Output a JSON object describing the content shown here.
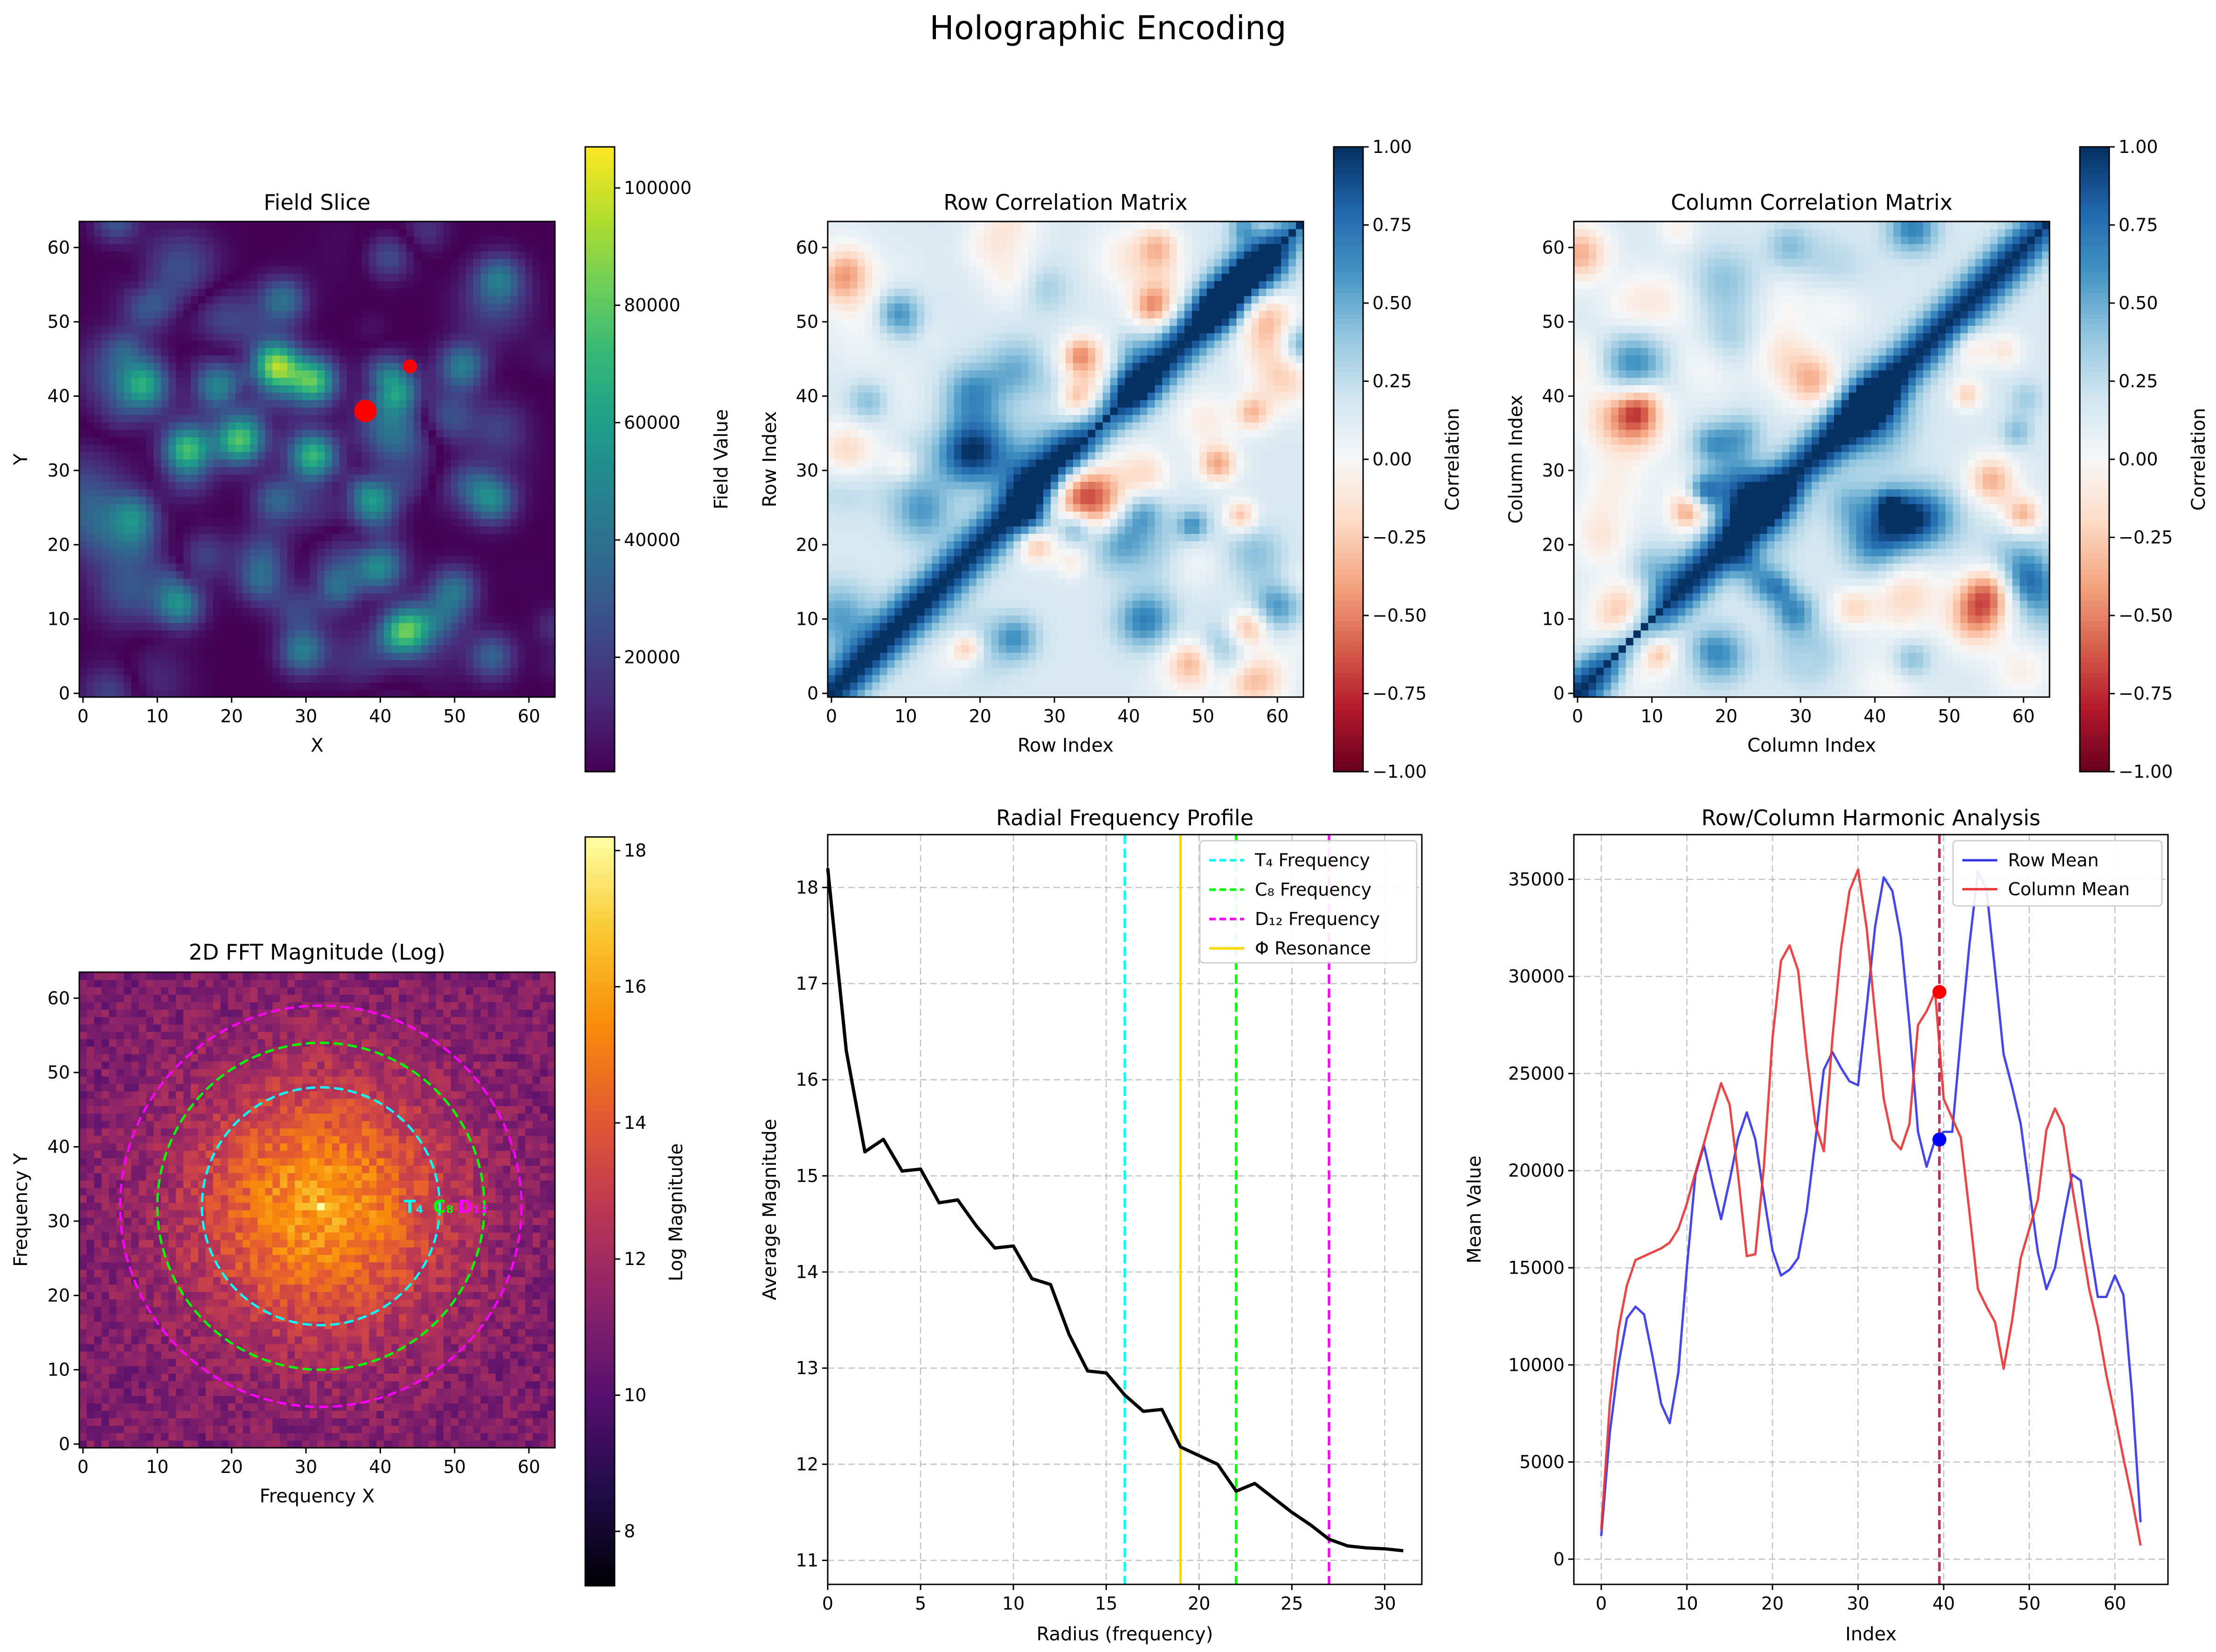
{
  "figure": {
    "suptitle": "Holographic Encoding"
  },
  "chart_data": [
    {
      "type": "heatmap",
      "title": "Field Slice",
      "xlabel": "X",
      "ylabel": "Y",
      "colormap": "viridis",
      "grid_size": 64,
      "xlim": [
        0,
        63
      ],
      "ylim": [
        0,
        63
      ],
      "xticks": [
        "0",
        "10",
        "20",
        "30",
        "40",
        "50",
        "60"
      ],
      "yticks": [
        "0",
        "10",
        "20",
        "30",
        "40",
        "50",
        "60"
      ],
      "colorbar": {
        "label": "Field Value",
        "range": [
          500,
          107000
        ],
        "ticks": [
          "20000",
          "40000",
          "60000",
          "80000",
          "100000"
        ],
        "tick_values": [
          20000,
          40000,
          60000,
          80000,
          100000
        ]
      },
      "markers": [
        {
          "x": 38,
          "y": 38,
          "color": "#ff0000"
        },
        {
          "x": 44,
          "y": 44,
          "color": "#ff0000"
        }
      ],
      "features": [
        {
          "x": 26,
          "y": 44,
          "value": 105000
        },
        {
          "x": 31,
          "y": 42,
          "value": 90000
        },
        {
          "x": 21,
          "y": 34,
          "value": 85000
        },
        {
          "x": 14,
          "y": 33,
          "value": 80000
        },
        {
          "x": 31,
          "y": 32,
          "value": 85000
        },
        {
          "x": 39,
          "y": 26,
          "value": 70000
        },
        {
          "x": 42,
          "y": 41,
          "value": 70000
        },
        {
          "x": 55,
          "y": 26,
          "value": 55000
        },
        {
          "x": 40,
          "y": 17,
          "value": 60000
        },
        {
          "x": 44,
          "y": 9,
          "value": 55000
        },
        {
          "x": 13,
          "y": 12,
          "value": 60000
        },
        {
          "x": 51,
          "y": 44,
          "value": 55000
        },
        {
          "x": 27,
          "y": 53,
          "value": 45000
        },
        {
          "x": 7,
          "y": 24,
          "value": 45000
        },
        {
          "x": 26,
          "y": 26,
          "value": 40000
        },
        {
          "x": 18,
          "y": 41,
          "value": 50000
        },
        {
          "x": 55,
          "y": 5,
          "value": 40000
        },
        {
          "x": 30,
          "y": 6,
          "value": 35000
        },
        {
          "x": 8,
          "y": 41,
          "value": 40000
        },
        {
          "x": 50,
          "y": 14,
          "value": 45000
        },
        {
          "x": 34,
          "y": 14,
          "value": 40000
        },
        {
          "x": 24,
          "y": 15,
          "value": 35000
        },
        {
          "x": 56,
          "y": 56,
          "value": 40000
        },
        {
          "x": 9,
          "y": 52,
          "value": 35000
        }
      ]
    },
    {
      "type": "heatmap",
      "title": "Row Correlation Matrix",
      "xlabel": "Row Index",
      "ylabel": "Row Index",
      "colormap": "RdBu",
      "grid_size": 64,
      "xlim": [
        0,
        63
      ],
      "ylim": [
        0,
        63
      ],
      "xticks": [
        "0",
        "10",
        "20",
        "30",
        "40",
        "50",
        "60"
      ],
      "yticks": [
        "0",
        "10",
        "20",
        "30",
        "40",
        "50",
        "60"
      ],
      "colorbar": {
        "label": "Correlation",
        "range": [
          -1,
          1
        ],
        "ticks": [
          "−1.00",
          "−0.75",
          "−0.50",
          "−0.25",
          "0.00",
          "0.25",
          "0.50",
          "0.75",
          "1.00"
        ],
        "tick_values": [
          -1,
          -0.75,
          -0.5,
          -0.25,
          0,
          0.25,
          0.5,
          0.75,
          1
        ]
      },
      "diagonal": 1.0
    },
    {
      "type": "heatmap",
      "title": "Column Correlation Matrix",
      "xlabel": "Column Index",
      "ylabel": "Column Index",
      "colormap": "RdBu",
      "grid_size": 64,
      "xlim": [
        0,
        63
      ],
      "ylim": [
        0,
        63
      ],
      "xticks": [
        "0",
        "10",
        "20",
        "30",
        "40",
        "50",
        "60"
      ],
      "yticks": [
        "0",
        "10",
        "20",
        "30",
        "40",
        "50",
        "60"
      ],
      "colorbar": {
        "label": "Correlation",
        "range": [
          -1,
          1
        ],
        "ticks": [
          "−1.00",
          "−0.75",
          "−0.50",
          "−0.25",
          "0.00",
          "0.25",
          "0.50",
          "0.75",
          "1.00"
        ],
        "tick_values": [
          -1,
          -0.75,
          -0.5,
          -0.25,
          0,
          0.25,
          0.5,
          0.75,
          1
        ]
      },
      "diagonal": 1.0
    },
    {
      "type": "heatmap",
      "title": "2D FFT Magnitude (Log)",
      "xlabel": "Frequency X",
      "ylabel": "Frequency Y",
      "colormap": "inferno",
      "grid_size": 64,
      "xlim": [
        0,
        63
      ],
      "ylim": [
        0,
        63
      ],
      "xticks": [
        "0",
        "10",
        "20",
        "30",
        "40",
        "50",
        "60"
      ],
      "yticks": [
        "0",
        "10",
        "20",
        "30",
        "40",
        "50",
        "60"
      ],
      "colorbar": {
        "label": "Log Magnitude",
        "range": [
          7.2,
          18.2
        ],
        "ticks": [
          "8",
          "10",
          "12",
          "14",
          "16",
          "18"
        ],
        "tick_values": [
          8,
          10,
          12,
          14,
          16,
          18
        ]
      },
      "center": [
        32,
        32
      ],
      "rings": [
        {
          "radius": 16,
          "color": "#00ffff",
          "label": "T₄"
        },
        {
          "radius": 22,
          "color": "#00ff00",
          "label": "C₈"
        },
        {
          "radius": 27,
          "color": "#ff00ff",
          "label": "D₁₂"
        }
      ]
    },
    {
      "type": "line",
      "title": "Radial Frequency Profile",
      "xlabel": "Radius (frequency)",
      "ylabel": "Average Magnitude",
      "xlim": [
        0,
        32
      ],
      "ylim": [
        10.75,
        18.55
      ],
      "xticks": [
        "0",
        "5",
        "10",
        "15",
        "20",
        "25",
        "30"
      ],
      "yticks": [
        "11",
        "12",
        "13",
        "14",
        "15",
        "16",
        "17",
        "18"
      ],
      "grid": true,
      "legend_position": "top-right",
      "x": [
        0,
        1,
        2,
        3,
        4,
        5,
        6,
        7,
        8,
        9,
        10,
        11,
        12,
        13,
        14,
        15,
        16,
        17,
        18,
        19,
        20,
        21,
        22,
        23,
        24,
        25,
        26,
        27,
        28,
        29,
        30,
        31
      ],
      "series": [
        {
          "values": [
            18.2,
            16.3,
            15.25,
            15.38,
            15.05,
            15.07,
            14.72,
            14.75,
            14.48,
            14.25,
            14.27,
            13.93,
            13.87,
            13.35,
            12.97,
            12.95,
            12.72,
            12.55,
            12.57,
            12.18,
            12.09,
            12.0,
            11.72,
            11.8,
            11.65,
            11.5,
            11.37,
            11.22,
            11.15,
            11.13,
            11.12,
            11.1
          ],
          "color": "#000000"
        }
      ],
      "vlines": [
        {
          "x": 16,
          "color": "#00ffff",
          "style": "dashed",
          "label": "T₄ Frequency"
        },
        {
          "x": 22,
          "color": "#00ff00",
          "style": "dashed",
          "label": "C₈ Frequency"
        },
        {
          "x": 27,
          "color": "#ff00ff",
          "style": "dashed",
          "label": "D₁₂ Frequency"
        },
        {
          "x": 19,
          "color": "#ffd700",
          "style": "solid",
          "label": "Φ Resonance"
        }
      ]
    },
    {
      "type": "line",
      "title": "Row/Column Harmonic Analysis",
      "xlabel": "Index",
      "ylabel": "Mean Value",
      "xlim": [
        -3.2,
        66.2
      ],
      "ylim": [
        -1300,
        37300
      ],
      "xticks": [
        "0",
        "10",
        "20",
        "30",
        "40",
        "50",
        "60"
      ],
      "yticks": [
        "0",
        "5000",
        "10000",
        "15000",
        "20000",
        "25000",
        "30000",
        "35000"
      ],
      "grid": true,
      "legend_position": "top-right",
      "x": [
        0,
        1,
        2,
        3,
        4,
        5,
        6,
        7,
        8,
        9,
        10,
        11,
        12,
        13,
        14,
        15,
        16,
        17,
        18,
        19,
        20,
        21,
        22,
        23,
        24,
        25,
        26,
        27,
        28,
        29,
        30,
        31,
        32,
        33,
        34,
        35,
        36,
        37,
        38,
        39,
        40,
        41,
        42,
        43,
        44,
        45,
        46,
        47,
        48,
        49,
        50,
        51,
        52,
        53,
        54,
        55,
        56,
        57,
        58,
        59,
        60,
        61,
        62,
        63
      ],
      "series": [
        {
          "name": "Row Mean",
          "color": "#3333e6",
          "values": [
            1200,
            6500,
            10000,
            12400,
            13000,
            12600,
            10400,
            8000,
            7000,
            9600,
            15000,
            19800,
            21300,
            19300,
            17500,
            19500,
            21700,
            23000,
            21600,
            18700,
            15900,
            14600,
            14900,
            15500,
            17900,
            21500,
            25200,
            26100,
            25300,
            24600,
            24400,
            28400,
            32600,
            35100,
            34400,
            32000,
            27500,
            22000,
            20200,
            21600,
            22000,
            22000,
            26900,
            31600,
            35400,
            34500,
            30300,
            26000,
            24300,
            22400,
            19100,
            15800,
            13900,
            15000,
            17500,
            19800,
            19500,
            16300,
            13500,
            13500,
            14600,
            13600,
            8500,
            1900
          ]
        },
        {
          "name": "Column Mean",
          "color": "#e63333",
          "values": [
            1500,
            8000,
            11800,
            14100,
            15400,
            15600,
            15800,
            16000,
            16300,
            17000,
            18300,
            19900,
            21400,
            23000,
            24500,
            23400,
            19700,
            15600,
            15700,
            20200,
            26800,
            30800,
            31600,
            30300,
            26000,
            22400,
            21000,
            26800,
            31400,
            34400,
            35500,
            32500,
            28000,
            23700,
            21600,
            21100,
            22400,
            27500,
            28200,
            29200,
            23700,
            22700,
            21700,
            17900,
            13900,
            13000,
            12200,
            9800,
            12300,
            15500,
            17000,
            18500,
            22100,
            23200,
            22300,
            19200,
            16500,
            13900,
            12000,
            9500,
            7400,
            5200,
            3100,
            700
          ]
        }
      ],
      "markers": [
        {
          "x": 39.5,
          "y": 29200,
          "color": "#ff0000"
        },
        {
          "x": 39.5,
          "y": 21600,
          "color": "#0000ff"
        }
      ],
      "vlines": [
        {
          "x": 39.5,
          "color": "#b03060",
          "style": "dashed"
        }
      ]
    }
  ]
}
